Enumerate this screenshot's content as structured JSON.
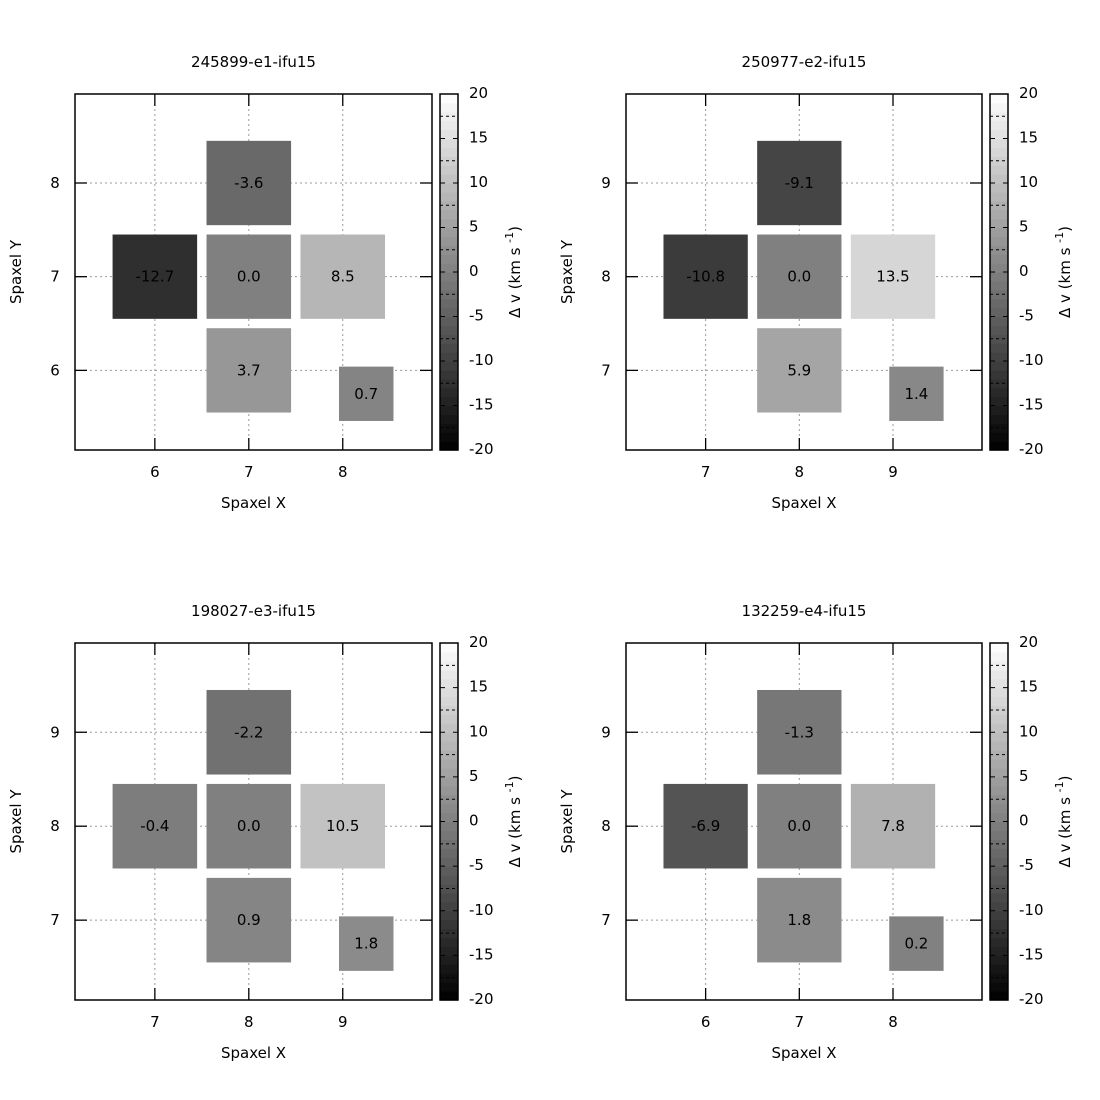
{
  "colorbar": {
    "label_prefix": "Δ v (km s",
    "label_exp": "-1",
    "label_suffix": ")",
    "min": -20,
    "max": 20,
    "ticks": [
      "20",
      "15",
      "10",
      "5",
      "0",
      "-5",
      "-10",
      "-15",
      "-20"
    ]
  },
  "chart_data": [
    {
      "type": "heatmap",
      "title": "245899-e1-ifu15",
      "xlabel": "Spaxel X",
      "ylabel": "Spaxel Y",
      "xticks": [
        "6",
        "7",
        "8"
      ],
      "yticks": [
        "6",
        "7",
        "8"
      ],
      "xlim": [
        5.15,
        8.95
      ],
      "ylim": [
        5.15,
        8.95
      ],
      "cells": [
        {
          "x": 7,
          "y": 8,
          "value": -3.6,
          "label": "-3.6"
        },
        {
          "x": 6,
          "y": 7,
          "value": -12.7,
          "label": "-12.7"
        },
        {
          "x": 7,
          "y": 7,
          "value": 0.0,
          "label": "0.0"
        },
        {
          "x": 8,
          "y": 7,
          "value": 8.5,
          "label": "8.5"
        },
        {
          "x": 7,
          "y": 6,
          "value": 3.7,
          "label": "3.7"
        },
        {
          "x": 8.25,
          "y": 5.75,
          "value": 0.7,
          "label": "0.7",
          "small": true
        }
      ]
    },
    {
      "type": "heatmap",
      "title": "250977-e2-ifu15",
      "xlabel": "Spaxel X",
      "ylabel": "Spaxel Y",
      "xticks": [
        "7",
        "8",
        "9"
      ],
      "yticks": [
        "7",
        "8",
        "9"
      ],
      "xlim": [
        6.15,
        9.95
      ],
      "ylim": [
        6.15,
        9.95
      ],
      "cells": [
        {
          "x": 8,
          "y": 9,
          "value": -9.1,
          "label": "-9.1"
        },
        {
          "x": 7,
          "y": 8,
          "value": -10.8,
          "label": "-10.8"
        },
        {
          "x": 8,
          "y": 8,
          "value": 0.0,
          "label": "0.0"
        },
        {
          "x": 9,
          "y": 8,
          "value": 13.5,
          "label": "13.5"
        },
        {
          "x": 8,
          "y": 7,
          "value": 5.9,
          "label": "5.9"
        },
        {
          "x": 9.25,
          "y": 6.75,
          "value": 1.4,
          "label": "1.4",
          "small": true
        }
      ]
    },
    {
      "type": "heatmap",
      "title": "198027-e3-ifu15",
      "xlabel": "Spaxel X",
      "ylabel": "Spaxel Y",
      "xticks": [
        "7",
        "8",
        "9"
      ],
      "yticks": [
        "7",
        "8",
        "9"
      ],
      "xlim": [
        6.15,
        9.95
      ],
      "ylim": [
        6.15,
        9.95
      ],
      "cells": [
        {
          "x": 8,
          "y": 9,
          "value": -2.2,
          "label": "-2.2"
        },
        {
          "x": 7,
          "y": 8,
          "value": -0.4,
          "label": "-0.4"
        },
        {
          "x": 8,
          "y": 8,
          "value": 0.0,
          "label": "0.0"
        },
        {
          "x": 9,
          "y": 8,
          "value": 10.5,
          "label": "10.5"
        },
        {
          "x": 8,
          "y": 7,
          "value": 0.9,
          "label": "0.9"
        },
        {
          "x": 9.25,
          "y": 6.75,
          "value": 1.8,
          "label": "1.8",
          "small": true
        }
      ]
    },
    {
      "type": "heatmap",
      "title": "132259-e4-ifu15",
      "xlabel": "Spaxel X",
      "ylabel": "Spaxel Y",
      "xticks": [
        "6",
        "7",
        "8"
      ],
      "yticks": [
        "7",
        "8",
        "9"
      ],
      "xlim": [
        5.15,
        8.95
      ],
      "ylim": [
        6.15,
        9.95
      ],
      "cells": [
        {
          "x": 7,
          "y": 9,
          "value": -1.3,
          "label": "-1.3"
        },
        {
          "x": 6,
          "y": 8,
          "value": -6.9,
          "label": "-6.9"
        },
        {
          "x": 7,
          "y": 8,
          "value": 0.0,
          "label": "0.0"
        },
        {
          "x": 8,
          "y": 8,
          "value": 7.8,
          "label": "7.8"
        },
        {
          "x": 7,
          "y": 7,
          "value": 1.8,
          "label": "1.8"
        },
        {
          "x": 8.25,
          "y": 6.75,
          "value": 0.2,
          "label": "0.2",
          "small": true
        }
      ]
    }
  ]
}
